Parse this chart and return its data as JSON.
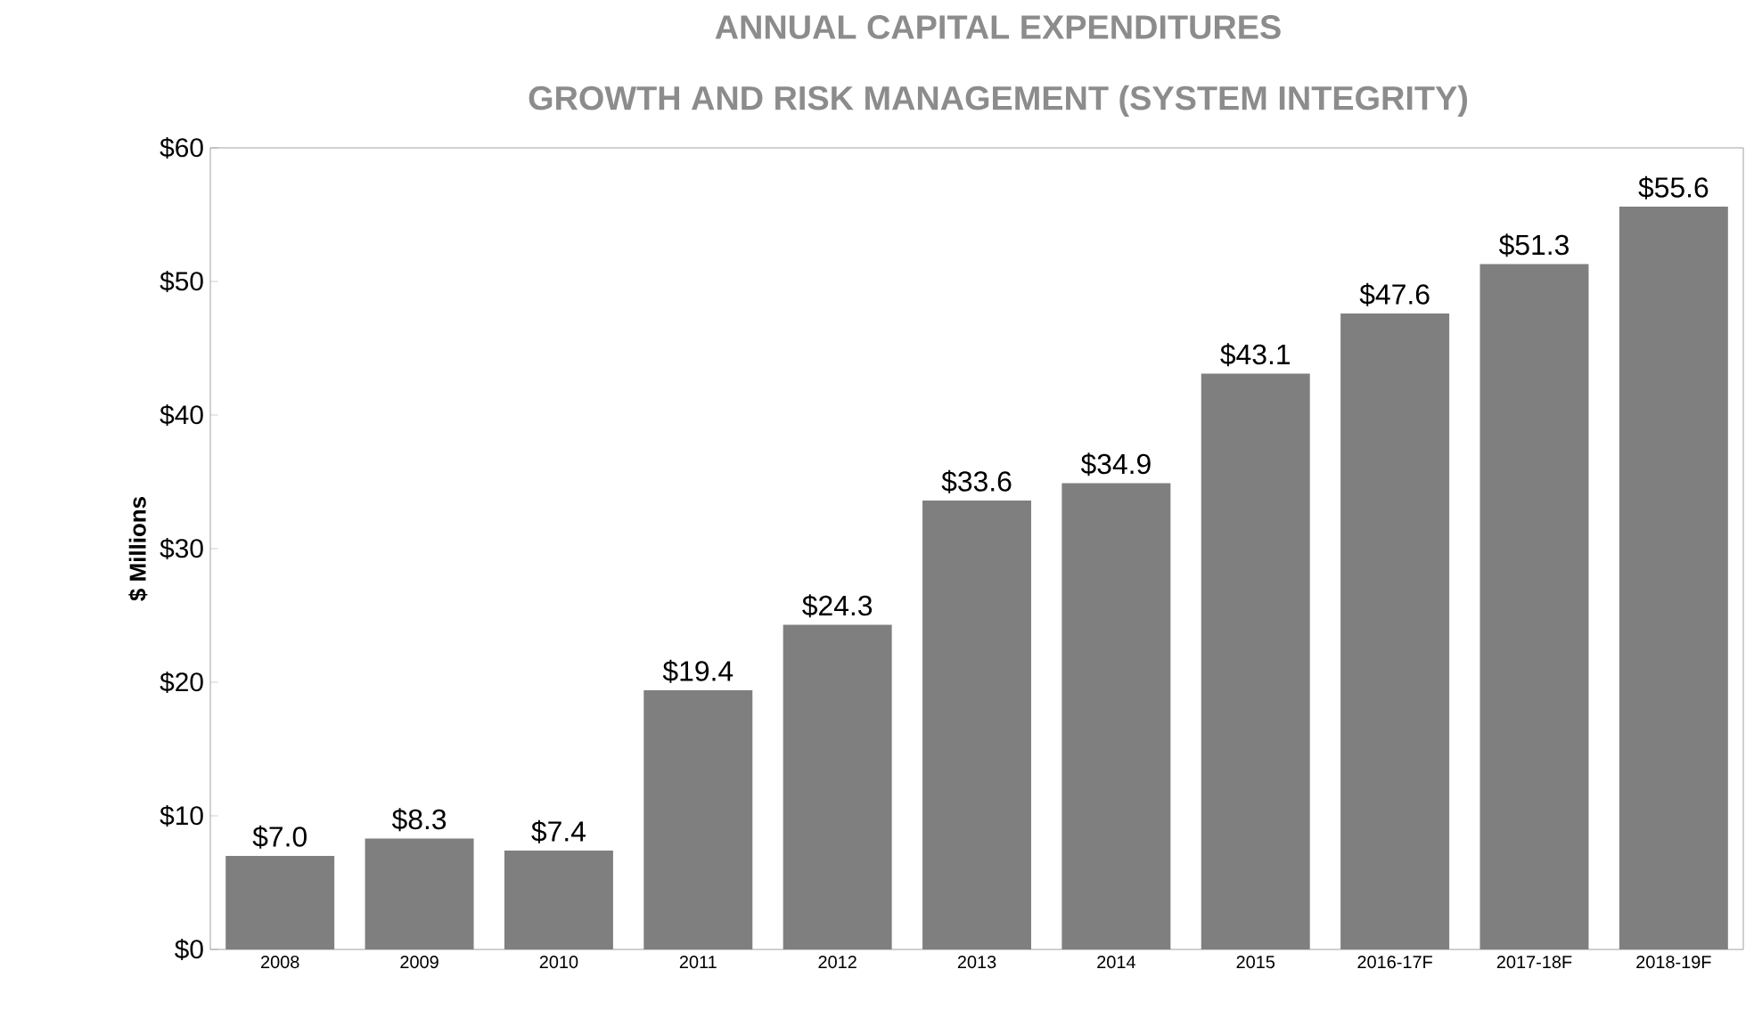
{
  "chart_data": {
    "type": "bar",
    "title": "ANNUAL CAPITAL EXPENDITURES",
    "subtitle": "GROWTH AND RISK MANAGEMENT (SYSTEM INTEGRITY)",
    "ylabel": "$ Millions",
    "categories": [
      "2008",
      "2009",
      "2010",
      "2011",
      "2012",
      "2013",
      "2014",
      "2015",
      "2016-17F",
      "2017-18F",
      "2018-19F"
    ],
    "values": [
      7.0,
      8.3,
      7.4,
      19.4,
      24.3,
      33.6,
      34.9,
      43.1,
      47.6,
      51.3,
      55.6
    ],
    "value_labels": [
      "$7.0",
      "$8.3",
      "$7.4",
      "$19.4",
      "$24.3",
      "$33.6",
      "$34.9",
      "$43.1",
      "$47.6",
      "$51.3",
      "$55.6"
    ],
    "color": "#7f7f7f",
    "ylim": [
      0,
      60
    ],
    "yticks": [
      {
        "value": 0,
        "label": "$0"
      },
      {
        "value": 10,
        "label": "$10"
      },
      {
        "value": 20,
        "label": "$20"
      },
      {
        "value": 30,
        "label": "$30"
      },
      {
        "value": 40,
        "label": "$40"
      },
      {
        "value": 50,
        "label": "$50"
      },
      {
        "value": 60,
        "label": "$60"
      }
    ],
    "grid": false
  }
}
